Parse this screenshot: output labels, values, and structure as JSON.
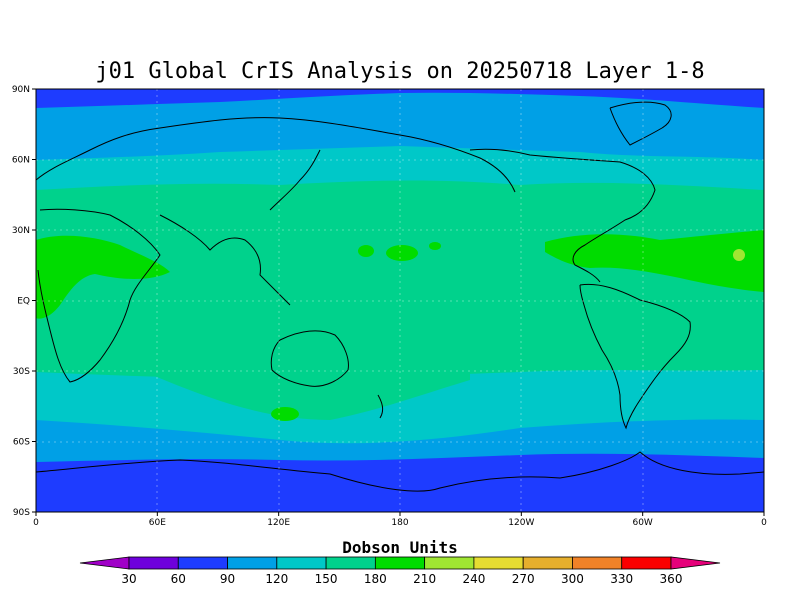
{
  "title": "j01 Global CrIS Analysis on 20250718 Layer 1-8",
  "lat_ticks": [
    "90N",
    "60N",
    "30N",
    "EQ",
    "30S",
    "60S",
    "90S"
  ],
  "lon_ticks": [
    "0",
    "60E",
    "120E",
    "180",
    "120W",
    "60W",
    "0"
  ],
  "colorbar": {
    "title": "Dobson Units",
    "labels": [
      "30",
      "60",
      "90",
      "120",
      "150",
      "180",
      "210",
      "240",
      "270",
      "300",
      "330",
      "360"
    ],
    "colors": [
      "#a000c8",
      "#6e00dc",
      "#1e3cff",
      "#00a0e6",
      "#00c8c8",
      "#00d28c",
      "#00dc00",
      "#a0e632",
      "#e6dc32",
      "#e6af2d",
      "#f08228",
      "#fa0000",
      "#e6007a"
    ]
  },
  "map_colors": {
    "c60": "#1e3cff",
    "c90": "#00a0e6",
    "c120": "#00c8c8",
    "c150": "#00d28c",
    "c180": "#00dc00",
    "c210": "#a0e632"
  }
}
